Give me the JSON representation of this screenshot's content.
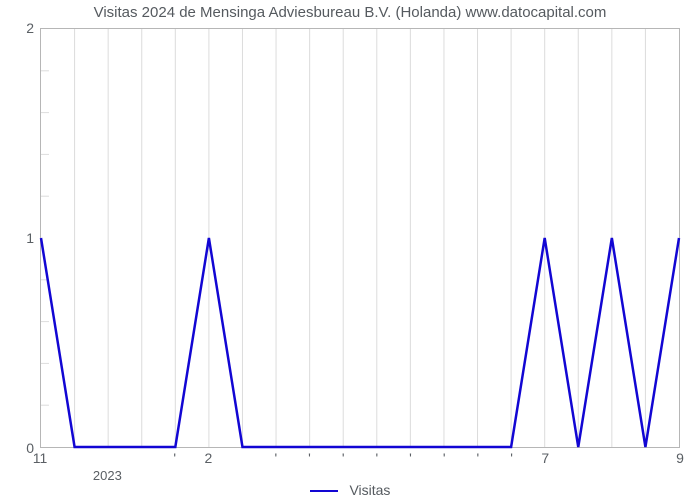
{
  "title": "Visitas 2024 de Mensinga Adviesbureau B.V. (Holanda) www.datocapital.com",
  "chart": {
    "type": "line",
    "background_color": "#ffffff",
    "grid_color": "#dcdcdc",
    "axis_color": "#b6b6b6",
    "tick_font_color": "#5a5f64",
    "tick_font_size": 14,
    "title_font_size": 15,
    "title_color": "#555a5f",
    "series": {
      "name": "Visitas",
      "color": "#1206d3",
      "line_width": 2.5,
      "marker": "none",
      "y": [
        1,
        0,
        0,
        0,
        0,
        1,
        0,
        0,
        0,
        0,
        0,
        0,
        0,
        0,
        0,
        1,
        0,
        1,
        0,
        1
      ]
    },
    "x": {
      "n_points": 20,
      "major_ticks": [
        {
          "index": 0,
          "label": "11"
        },
        {
          "index": 2,
          "label": "2023"
        },
        {
          "index": 5,
          "label": "2"
        },
        {
          "index": 15,
          "label": "7"
        },
        {
          "index": 19,
          "label": "9"
        }
      ],
      "minor_tick_indices": [
        4,
        7,
        8,
        9,
        10,
        11,
        12,
        13,
        14
      ],
      "minor_symbol": "'"
    },
    "y": {
      "lim": [
        0,
        2
      ],
      "ticks": [
        0,
        1,
        2
      ],
      "minor_tick_step": 0.2
    },
    "x_grid_count": 20
  },
  "legend": {
    "label": "Visitas"
  }
}
